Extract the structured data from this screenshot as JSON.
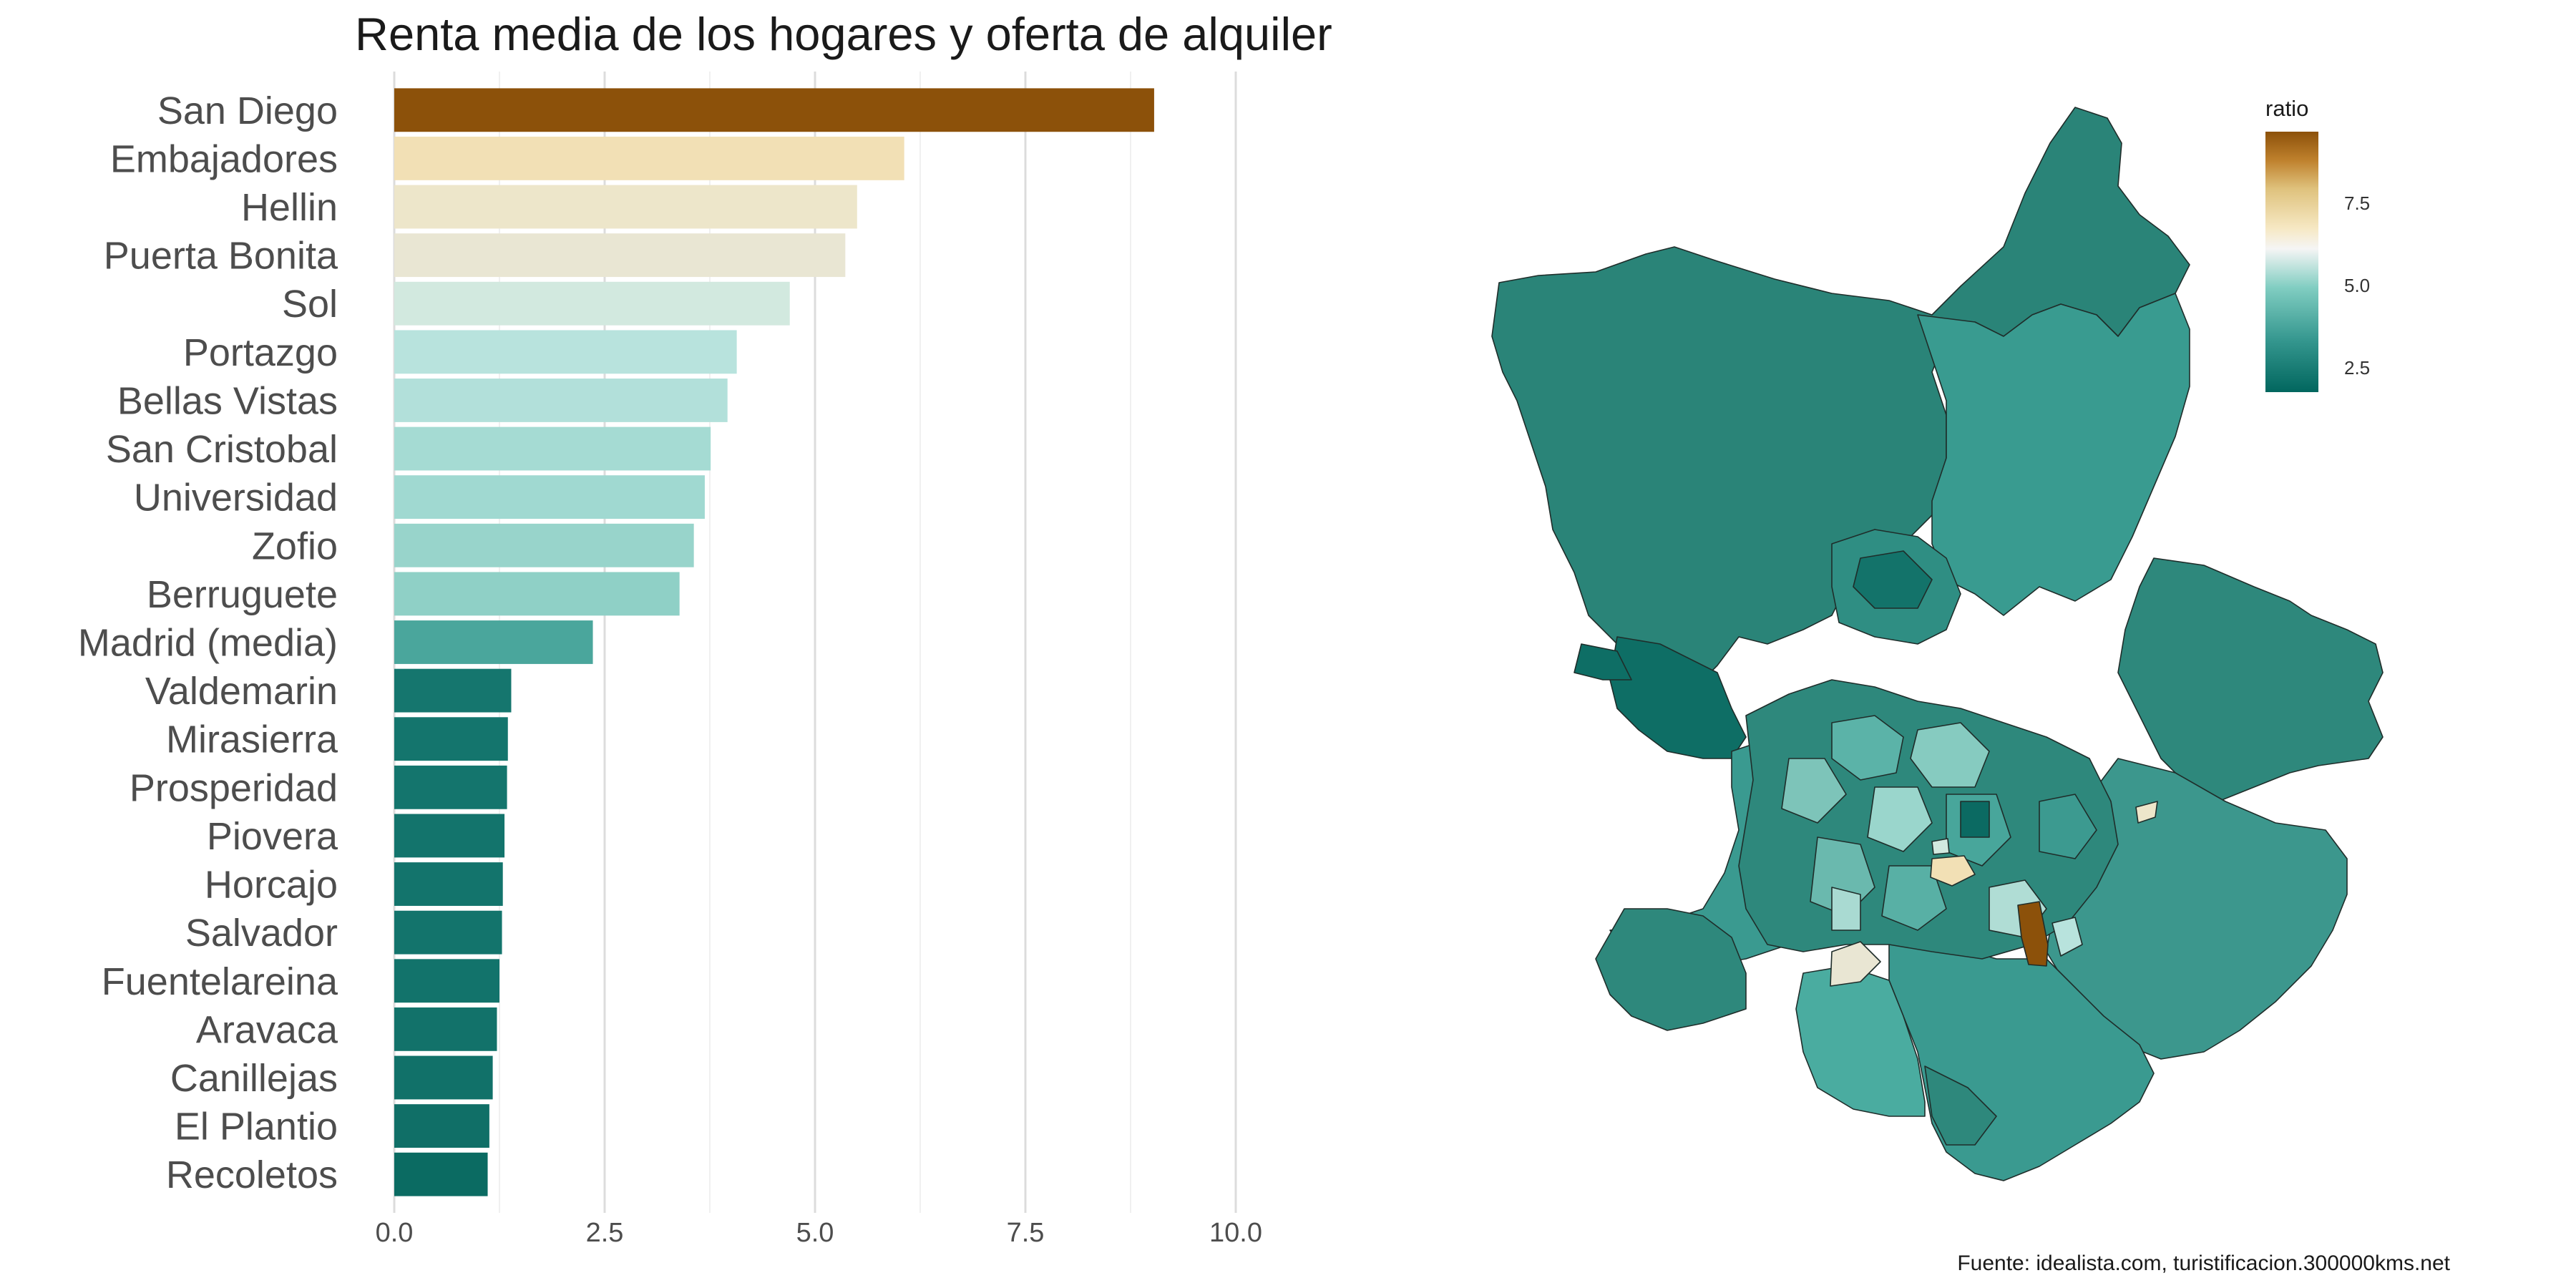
{
  "chart_data": [
    {
      "type": "bar",
      "orientation": "horizontal",
      "title": "Renta media de los hogares y oferta de alquiler",
      "xlabel": "",
      "ylabel": "",
      "xlim": [
        0,
        10.8
      ],
      "x_ticks": [
        "0.0",
        "2.5",
        "5.0",
        "7.5",
        "10.0"
      ],
      "x_tick_values": [
        0,
        2.5,
        5,
        7.5,
        10
      ],
      "grid": "vertical",
      "categories": [
        "San Diego",
        "Embajadores",
        "Hellin",
        "Puerta Bonita",
        "Sol",
        "Portazgo",
        "Bellas Vistas",
        "San Cristobal",
        "Universidad",
        "Zofio",
        "Berruguete",
        "Madrid (media)",
        "Valdemarin",
        "Mirasierra",
        "Prosperidad",
        "Piovera",
        "Horcajo",
        "Salvador",
        "Fuentelareina",
        "Aravaca",
        "Canillejas",
        "El Plantio",
        "Recoletos"
      ],
      "values": [
        9.03,
        6.06,
        5.5,
        5.36,
        4.7,
        4.07,
        3.96,
        3.76,
        3.69,
        3.56,
        3.39,
        2.36,
        1.39,
        1.35,
        1.34,
        1.31,
        1.29,
        1.28,
        1.25,
        1.22,
        1.17,
        1.13,
        1.11
      ],
      "colors": [
        "#8c510a",
        "#f2e0b5",
        "#ede6ca",
        "#e9e6d3",
        "#d2e9df",
        "#b8e3dd",
        "#b2e0da",
        "#a5dbd3",
        "#a0d9d1",
        "#98d4cb",
        "#8fd0c6",
        "#4aa69c",
        "#15766e",
        "#14756d",
        "#14756d",
        "#13746c",
        "#13746c",
        "#13746c",
        "#12736b",
        "#12726a",
        "#117169",
        "#106f67",
        "#0b6b62"
      ]
    },
    {
      "type": "choropleth",
      "legend": {
        "title": "ratio",
        "position": "top-right",
        "breaks": [
          "2.5",
          "5.0",
          "7.5"
        ],
        "break_values": [
          2.5,
          5.0,
          7.5
        ],
        "range": [
          1.11,
          9.03
        ],
        "color_low": "#01665e",
        "color_mid": "#f5f5f5",
        "color_high": "#8c510a"
      }
    }
  ],
  "source": "Fuente: idealista.com, turistificacion.300000kms.net"
}
